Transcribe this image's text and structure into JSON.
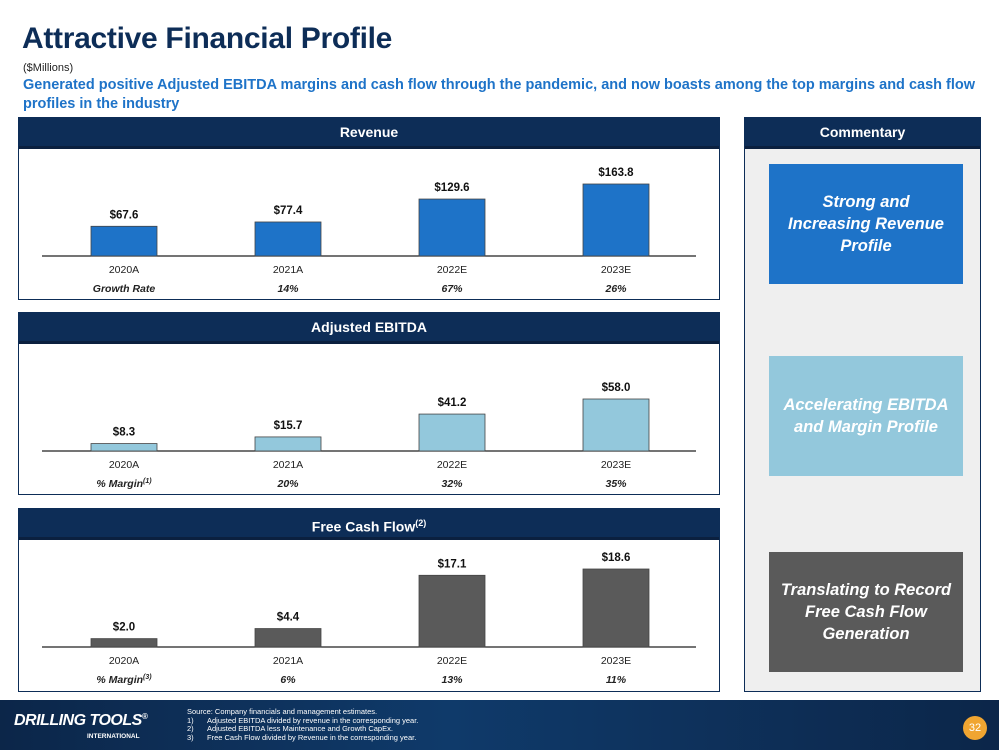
{
  "title": "Attractive Financial Profile",
  "units": "($Millions)",
  "subtitle": "Generated positive Adjusted EBITDA margins and cash flow through the pandemic, and now boasts among the top margins and cash flow profiles in the industry",
  "chart_data": [
    {
      "type": "bar",
      "title": "Revenue",
      "categories": [
        "2020A",
        "2021A",
        "2022E",
        "2023E"
      ],
      "values": [
        67.6,
        77.4,
        129.6,
        163.8
      ],
      "value_labels": [
        "$67.6",
        "$77.4",
        "$129.6",
        "$163.8"
      ],
      "metric_label": "Growth Rate",
      "metric_label_sup": "",
      "metric_values": [
        "",
        "14%",
        "67%",
        "26%"
      ],
      "color": "#1e73c8",
      "ymax": 163.8,
      "max_bar_px": 72,
      "grid": false
    },
    {
      "type": "bar",
      "title": "Adjusted EBITDA",
      "categories": [
        "2020A",
        "2021A",
        "2022E",
        "2023E"
      ],
      "values": [
        8.3,
        15.7,
        41.2,
        58.0
      ],
      "value_labels": [
        "$8.3",
        "$15.7",
        "$41.2",
        "$58.0"
      ],
      "metric_label": "% Margin",
      "metric_label_sup": "(1)",
      "metric_values": [
        "",
        "20%",
        "32%",
        "35%"
      ],
      "color": "#93c8dc",
      "ymax": 58.0,
      "max_bar_px": 52,
      "grid": false
    },
    {
      "type": "bar",
      "title": "Free Cash Flow",
      "title_sup": "(2)",
      "categories": [
        "2020A",
        "2021A",
        "2022E",
        "2023E"
      ],
      "values": [
        2.0,
        4.4,
        17.1,
        18.6
      ],
      "value_labels": [
        "$2.0",
        "$4.4",
        "$17.1",
        "$18.6"
      ],
      "metric_label": "% Margin",
      "metric_label_sup": "(3)",
      "metric_values": [
        "",
        "6%",
        "13%",
        "11%"
      ],
      "color": "#5a5a5a",
      "ymax": 18.6,
      "max_bar_px": 78,
      "grid": false
    }
  ],
  "commentary": {
    "title": "Commentary",
    "boxes": [
      {
        "text": "Strong and Increasing Revenue Profile",
        "color": "#1e73c8"
      },
      {
        "text": "Accelerating EBITDA and Margin Profile",
        "color": "#93c8dc"
      },
      {
        "text": "Translating to Record Free Cash Flow Generation",
        "color": "#5a5a5a"
      }
    ]
  },
  "footer": {
    "logo": "DRILLING TOOLS",
    "logo_reg": "®",
    "logo_sub": "INTERNATIONAL",
    "source": "Source: Company financials and management estimates.",
    "notes": [
      {
        "n": "1)",
        "text": "Adjusted EBITDA divided by revenue in the corresponding year."
      },
      {
        "n": "2)",
        "text": "Adjusted EBITDA less Maintenance and Growth CapEx."
      },
      {
        "n": "3)",
        "text": "Free Cash Flow divided by Revenue in the corresponding year."
      }
    ],
    "page_number": "32"
  }
}
